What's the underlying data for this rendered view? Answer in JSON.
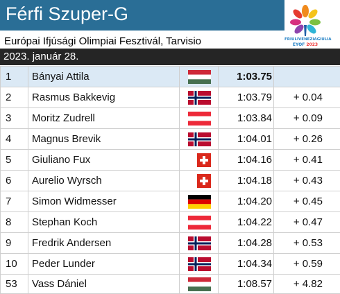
{
  "header": {
    "title": "Férfi Szuper-G",
    "subtitle": "Európai Ifjúsági Olimpiai Fesztivál, Tarvisio",
    "date": "2023. január 28.",
    "title_bar_color": "#2a6e96",
    "date_bar_color": "#252525"
  },
  "logo": {
    "icon": "eyof-torch-flower-logo",
    "line1": "FRIULIVENEZIAGIULIA",
    "line2_event": "EYOF",
    "line2_year": "2023"
  },
  "results": [
    {
      "rank": "1",
      "name": "Bányai Attila",
      "flag": "hungary",
      "time": "1:03.75",
      "diff": "",
      "highlight": true
    },
    {
      "rank": "2",
      "name": "Rasmus Bakkevig",
      "flag": "norway",
      "time": "1:03.79",
      "diff": "+ 0.04"
    },
    {
      "rank": "3",
      "name": "Moritz Zudrell",
      "flag": "austria",
      "time": "1:03.84",
      "diff": "+ 0.09"
    },
    {
      "rank": "4",
      "name": "Magnus Brevik",
      "flag": "norway",
      "time": "1:04.01",
      "diff": "+ 0.26"
    },
    {
      "rank": "5",
      "name": "Giuliano Fux",
      "flag": "switzerland",
      "time": "1:04.16",
      "diff": "+ 0.41"
    },
    {
      "rank": "6",
      "name": "Aurelio Wyrsch",
      "flag": "switzerland",
      "time": "1:04.18",
      "diff": "+ 0.43"
    },
    {
      "rank": "7",
      "name": "Simon Widmesser",
      "flag": "germany",
      "time": "1:04.20",
      "diff": "+ 0.45"
    },
    {
      "rank": "8",
      "name": "Stephan Koch",
      "flag": "austria",
      "time": "1:04.22",
      "diff": "+ 0.47"
    },
    {
      "rank": "9",
      "name": "Fredrik Andersen",
      "flag": "norway",
      "time": "1:04.28",
      "diff": "+ 0.53"
    },
    {
      "rank": "10",
      "name": "Peder Lunder",
      "flag": "norway",
      "time": "1:04.34",
      "diff": "+ 0.59"
    },
    {
      "rank": "53",
      "name": "Vass Dániel",
      "flag": "hungary",
      "time": "1:08.57",
      "diff": "+ 4.82"
    }
  ]
}
